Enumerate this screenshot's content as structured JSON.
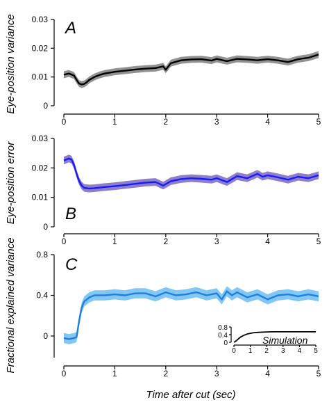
{
  "figure": {
    "xlabel": "Time after cut (sec)"
  },
  "chart_data": [
    {
      "type": "line",
      "panel_letter": "A",
      "ylabel": "Eye-position variance",
      "xlim": [
        0,
        5
      ],
      "ylim": [
        0,
        0.03
      ],
      "xticks": [
        0,
        1,
        2,
        3,
        4,
        5
      ],
      "yticks": [
        0,
        0.01,
        0.02,
        0.03
      ],
      "ytick_labels": [
        "0",
        "0.01",
        "0.02",
        "0.03"
      ],
      "grid": false,
      "series": [
        {
          "line_color": "#000000",
          "band_color": "#8c8c8c",
          "x": [
            0,
            0.1,
            0.2,
            0.25,
            0.3,
            0.35,
            0.4,
            0.45,
            0.5,
            0.6,
            0.7,
            0.8,
            0.9,
            1.0,
            1.2,
            1.4,
            1.6,
            1.8,
            1.95,
            2.0,
            2.1,
            2.3,
            2.5,
            2.7,
            2.9,
            3.0,
            3.2,
            3.4,
            3.6,
            3.8,
            4.0,
            4.2,
            4.4,
            4.6,
            4.8,
            5.0
          ],
          "y": [
            0.0108,
            0.0112,
            0.0105,
            0.009,
            0.0077,
            0.0074,
            0.0076,
            0.0082,
            0.009,
            0.01,
            0.0107,
            0.0112,
            0.0115,
            0.0118,
            0.0122,
            0.0126,
            0.0129,
            0.0131,
            0.0137,
            0.0125,
            0.0148,
            0.0158,
            0.0161,
            0.0162,
            0.0157,
            0.0163,
            0.0155,
            0.0163,
            0.0161,
            0.0158,
            0.0162,
            0.0158,
            0.0152,
            0.0162,
            0.0167,
            0.0178
          ],
          "band": 0.0012
        }
      ]
    },
    {
      "type": "line",
      "panel_letter": "B",
      "ylabel": "Eye-position error",
      "xlim": [
        0,
        5
      ],
      "ylim": [
        0,
        0.03
      ],
      "xticks": [
        0,
        1,
        2,
        3,
        4,
        5
      ],
      "yticks": [
        0,
        0.01,
        0.02,
        0.03
      ],
      "ytick_labels": [
        "0",
        "0.01",
        "0.02",
        "0.03"
      ],
      "grid": false,
      "series": [
        {
          "line_color": "#1a1aff",
          "band_color": "#8878c8",
          "x": [
            0,
            0.1,
            0.15,
            0.2,
            0.25,
            0.3,
            0.35,
            0.4,
            0.5,
            0.6,
            0.8,
            1.0,
            1.2,
            1.4,
            1.6,
            1.8,
            1.95,
            2.0,
            2.1,
            2.3,
            2.5,
            2.7,
            2.9,
            3.0,
            3.2,
            3.4,
            3.6,
            3.8,
            3.9,
            4.0,
            4.2,
            4.4,
            4.6,
            4.8,
            5.0
          ],
          "y": [
            0.0225,
            0.0232,
            0.0228,
            0.021,
            0.018,
            0.0155,
            0.014,
            0.0132,
            0.013,
            0.0131,
            0.0135,
            0.0138,
            0.0142,
            0.0146,
            0.015,
            0.0152,
            0.014,
            0.0145,
            0.0155,
            0.0162,
            0.0165,
            0.0163,
            0.016,
            0.0165,
            0.0152,
            0.0172,
            0.0165,
            0.018,
            0.017,
            0.0175,
            0.0168,
            0.016,
            0.017,
            0.0165,
            0.0175
          ],
          "band": 0.0013
        }
      ]
    },
    {
      "type": "line",
      "panel_letter": "C",
      "ylabel": "Fractional explained variance",
      "xlim": [
        0,
        5
      ],
      "ylim": [
        -0.25,
        0.8
      ],
      "xticks": [
        0,
        1,
        2,
        3,
        4,
        5
      ],
      "yticks": [
        0,
        0.4,
        0.8
      ],
      "ytick_labels": [
        "0",
        "0.4",
        "0.8"
      ],
      "grid": false,
      "series": [
        {
          "line_color": "#1e7fe0",
          "band_color": "#7cc4f2",
          "x": [
            0,
            0.1,
            0.2,
            0.25,
            0.3,
            0.35,
            0.4,
            0.5,
            0.6,
            0.8,
            1.0,
            1.2,
            1.4,
            1.6,
            1.8,
            2.0,
            2.2,
            2.4,
            2.6,
            2.8,
            3.0,
            3.1,
            3.2,
            3.3,
            3.4,
            3.6,
            3.8,
            4.0,
            4.2,
            4.4,
            4.6,
            4.8,
            5.0
          ],
          "y": [
            -0.02,
            -0.03,
            -0.02,
            -0.01,
            0.15,
            0.28,
            0.34,
            0.38,
            0.4,
            0.4,
            0.41,
            0.4,
            0.42,
            0.42,
            0.39,
            0.43,
            0.4,
            0.41,
            0.43,
            0.4,
            0.42,
            0.36,
            0.44,
            0.4,
            0.43,
            0.38,
            0.41,
            0.36,
            0.4,
            0.41,
            0.39,
            0.41,
            0.39
          ],
          "band": 0.05
        }
      ]
    },
    {
      "type": "line",
      "inset": true,
      "title": "Simulation",
      "xlim": [
        0,
        5
      ],
      "ylim": [
        0,
        0.8
      ],
      "xticks": [
        0,
        1,
        2,
        3,
        4,
        5
      ],
      "yticks": [
        0,
        0.4,
        0.8
      ],
      "ytick_labels": [
        "0",
        "0.4",
        "0.8"
      ],
      "grid": false,
      "series": [
        {
          "line_color": "#000000",
          "x": [
            0,
            0.1,
            0.2,
            0.3,
            0.4,
            0.6,
            0.8,
            1.0,
            1.2,
            1.5,
            2.0,
            2.5,
            3.0,
            3.5,
            4.0,
            4.5,
            5.0
          ],
          "y": [
            0.0,
            0.05,
            0.12,
            0.2,
            0.27,
            0.36,
            0.43,
            0.47,
            0.5,
            0.52,
            0.54,
            0.55,
            0.55,
            0.55,
            0.55,
            0.55,
            0.55
          ]
        }
      ]
    }
  ]
}
